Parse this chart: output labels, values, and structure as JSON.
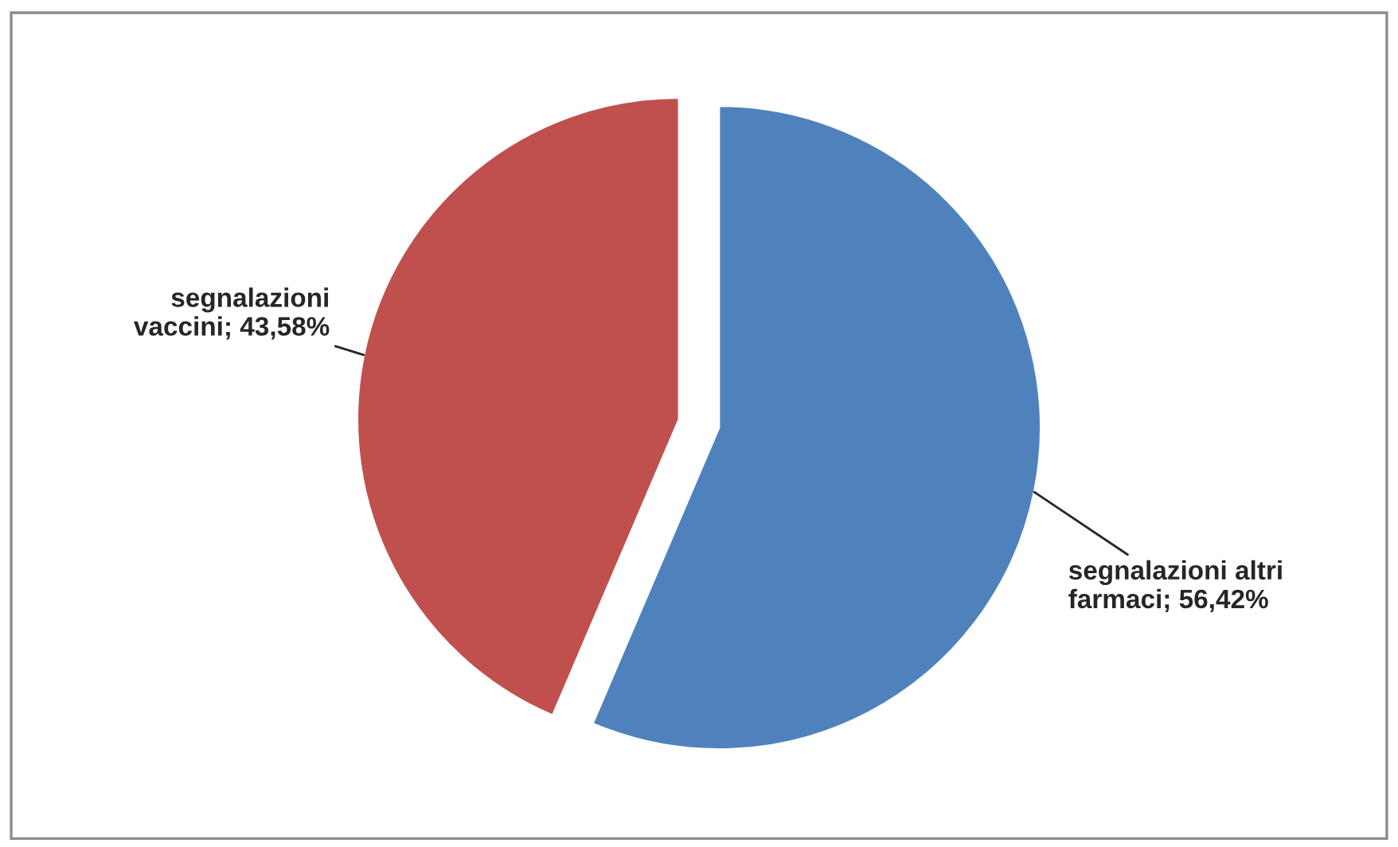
{
  "chart_data": {
    "type": "pie",
    "categories": [
      "segnalazioni altri\nfarmaci",
      "segnalazioni\nvaccini"
    ],
    "values": [
      56.42,
      43.58
    ],
    "value_labels": [
      "56,42%",
      "43,58%"
    ],
    "colors": [
      "#4f81bd",
      "#c0504d"
    ],
    "legend": false
  }
}
